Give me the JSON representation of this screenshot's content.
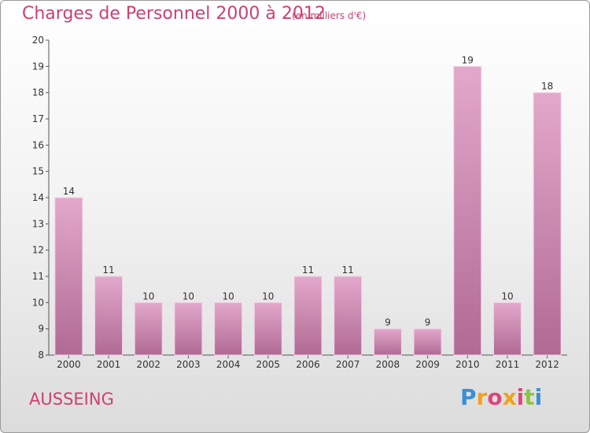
{
  "header": {
    "title": "Charges de Personnel 2000 à 2012",
    "subtitle": "(en milliers d'€)"
  },
  "footer": {
    "commune": "AUSSEING",
    "logo_text": "Proxiti"
  },
  "colors": {
    "accent": "#cf3f6f",
    "bar_top": "#e3a8cb",
    "bar_bottom": "#b06a94"
  },
  "chart_data": {
    "type": "bar",
    "categories": [
      "2000",
      "2001",
      "2002",
      "2003",
      "2004",
      "2005",
      "2006",
      "2007",
      "2008",
      "2009",
      "2010",
      "2011",
      "2012"
    ],
    "values": [
      14,
      11,
      10,
      10,
      10,
      10,
      11,
      11,
      9,
      9,
      19,
      10,
      18
    ],
    "ylim": [
      8,
      20
    ],
    "yticks": [
      8,
      9,
      10,
      11,
      12,
      13,
      14,
      15,
      16,
      17,
      18,
      19,
      20
    ],
    "grid": false,
    "legend": "none"
  }
}
